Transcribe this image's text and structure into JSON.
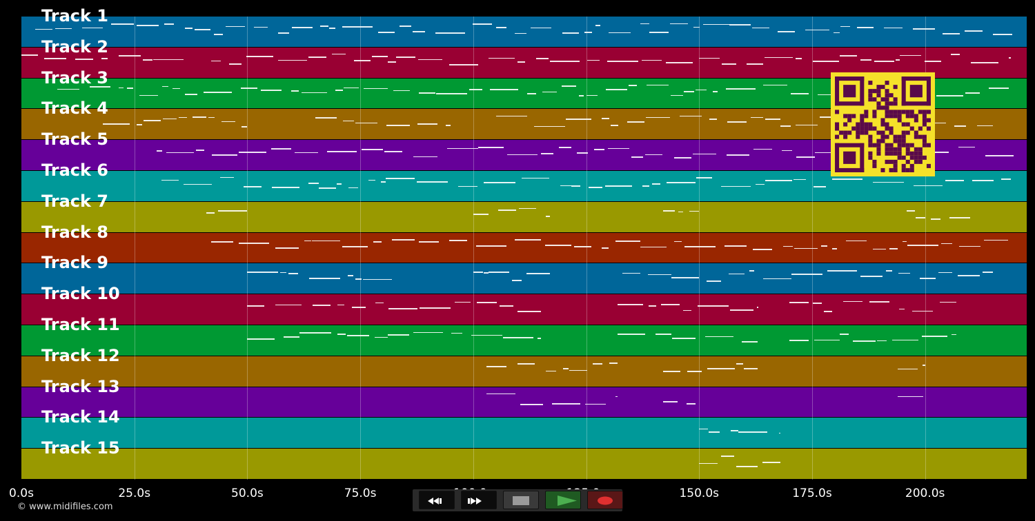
{
  "tracks": [
    {
      "label": "Track 1",
      "color": "#006699"
    },
    {
      "label": "Track 2",
      "color": "#990033"
    },
    {
      "label": "Track 3",
      "color": "#009933"
    },
    {
      "label": "Track 4",
      "color": "#996600"
    },
    {
      "label": "Track 5",
      "color": "#660099"
    },
    {
      "label": "Track 6",
      "color": "#009999"
    },
    {
      "label": "Track 7",
      "color": "#999900"
    },
    {
      "label": "Track 8",
      "color": "#992600"
    },
    {
      "label": "Track 9",
      "color": "#006699"
    },
    {
      "label": "Track 10",
      "color": "#990033"
    },
    {
      "label": "Track 11",
      "color": "#009933"
    },
    {
      "label": "Track 12",
      "color": "#996600"
    },
    {
      "label": "Track 13",
      "color": "#660099"
    },
    {
      "label": "Track 14",
      "color": "#009999"
    },
    {
      "label": "Track 15",
      "color": "#999900"
    }
  ],
  "timeline": {
    "max_seconds": 222.5,
    "ticks": [
      {
        "value": 0,
        "label": "0.0s"
      },
      {
        "value": 25,
        "label": "25.0s"
      },
      {
        "value": 50,
        "label": "50.0s"
      },
      {
        "value": 75,
        "label": "75.0s"
      },
      {
        "value": 100,
        "label": "100.0s"
      },
      {
        "value": 125,
        "label": "125.0s"
      },
      {
        "value": 150,
        "label": "150.0s"
      },
      {
        "value": 175,
        "label": "175.0s"
      },
      {
        "value": 200,
        "label": "200.0s"
      }
    ]
  },
  "copyright": "© www.midifiles.com",
  "transport": {
    "buttons": [
      "rewind",
      "fast-forward",
      "stop",
      "play",
      "record"
    ],
    "colors": {
      "play": "#4caf50",
      "record": "#e03030",
      "stop": "#9a9a9a"
    }
  },
  "qr_code": {
    "color_fg": "#5a0a4a",
    "color_bg": "#f5e12a"
  }
}
